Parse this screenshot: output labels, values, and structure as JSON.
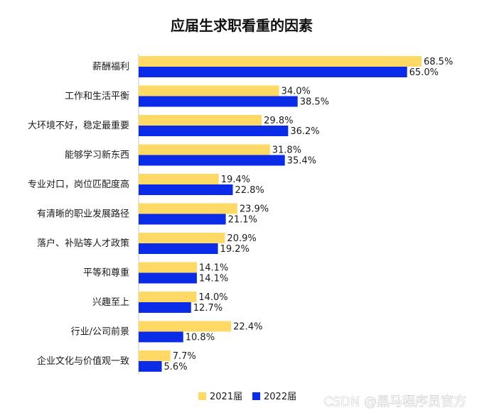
{
  "chart_data": {
    "type": "bar",
    "orientation": "horizontal",
    "title": "应届生求职看重的因素",
    "categories": [
      "薪酬福利",
      "工作和生活平衡",
      "大环境不好，稳定最重要",
      "能够学习新东西",
      "专业对口，岗位匹配度高",
      "有清晰的职业发展路径",
      "落户、补贴等人才政策",
      "平等和尊重",
      "兴趣至上",
      "行业/公司前景",
      "企业文化与价值观一致"
    ],
    "series": [
      {
        "name": "2021届",
        "color": "#FFD966",
        "values": [
          68.5,
          34.0,
          29.8,
          31.8,
          19.4,
          23.9,
          20.9,
          14.1,
          14.0,
          22.4,
          7.7
        ],
        "labels": [
          "68.5%",
          "34.0%",
          "29.8%",
          "31.8%",
          "19.4%",
          "23.9%",
          "20.9%",
          "14.1%",
          "14.0%",
          "22.4%",
          "7.7%"
        ]
      },
      {
        "name": "2022届",
        "color": "#0A2BE8",
        "values": [
          65.0,
          38.5,
          36.2,
          35.4,
          22.8,
          21.1,
          19.2,
          14.1,
          12.7,
          10.8,
          5.6
        ],
        "labels": [
          "65.0%",
          "38.5%",
          "36.2%",
          "35.4%",
          "22.8%",
          "21.1%",
          "19.2%",
          "14.1%",
          "12.7%",
          "10.8%",
          "5.6%"
        ]
      }
    ],
    "xlim": [
      0,
      68.5
    ],
    "grid": false,
    "legend_position": "bottom-center"
  },
  "watermark": "CSDN @黑马程序员官方"
}
